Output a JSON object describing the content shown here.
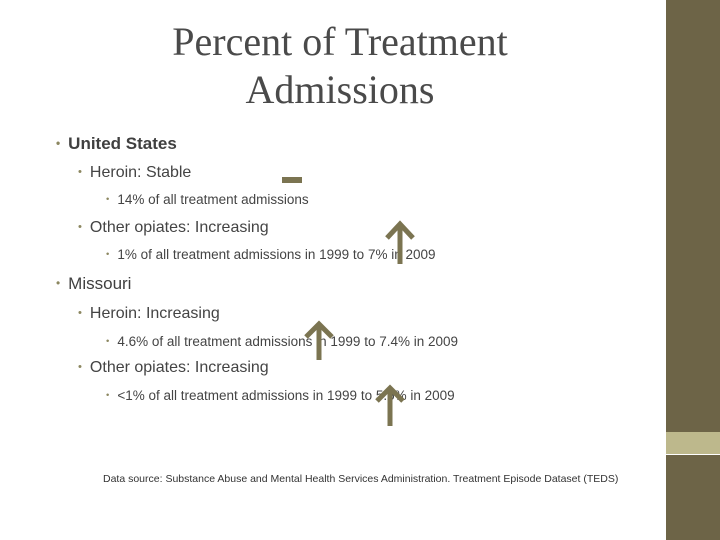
{
  "slide": {
    "title_line1": "Percent of Treatment",
    "title_line2": "Admissions"
  },
  "content": {
    "us": {
      "label": "United States",
      "heroin": {
        "label": "Heroin:  Stable",
        "detail": "14% of all treatment admissions",
        "trend": "stable"
      },
      "other_opiates": {
        "label": "Other opiates:  Increasing",
        "detail": "1% of all treatment admissions in 1999 to 7% in 2009",
        "trend": "up"
      }
    },
    "missouri": {
      "label": "Missouri",
      "heroin": {
        "label": "Heroin: Increasing",
        "detail": "4.6% of all treatment admissions in 1999  to 7.4% in 2009",
        "trend": "up"
      },
      "other_opiates": {
        "label": "Other opiates: Increasing",
        "detail": "<1% of all treatment admissions in 1999 to 5.5% in 2009",
        "trend": "up"
      }
    }
  },
  "source_note": "Data source:  Substance Abuse and Mental Health Services Administration.  Treatment Episode Dataset (TEDS)",
  "colors": {
    "accent": "#7b7451",
    "sidebar": "#6d6447",
    "sidebar_stripe": "#bdb88c"
  },
  "icons": {
    "stable": "dash-icon",
    "up": "up-arrow-icon"
  }
}
